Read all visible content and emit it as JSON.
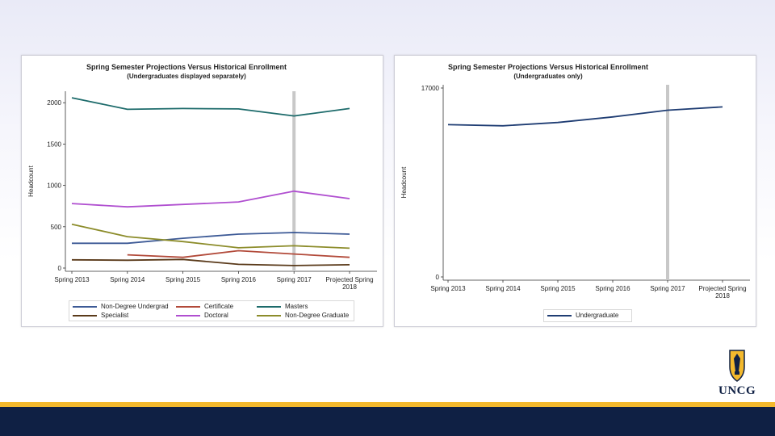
{
  "colors": {
    "accent_navy": "#0f2044",
    "accent_gold": "#f3b92d",
    "non_degree_undergrad": "#3d5a96",
    "certificate": "#b24a3a",
    "masters": "#1d6b6b",
    "specialist": "#5a3a1a",
    "doctoral": "#b04fd0",
    "non_degree_graduate": "#8c8c2a",
    "undergraduate": "#1f3d73"
  },
  "logo": {
    "text": "UNCG",
    "icon": "spartan-shield-icon"
  },
  "chart_data": [
    {
      "type": "line",
      "title": "Spring Semester Projections Versus Historical Enrollment",
      "subtitle": "(Undergraduates displayed separately)",
      "xlabel": "",
      "ylabel": "Headcount",
      "ylim": [
        0,
        2100
      ],
      "yticks": [
        0,
        500,
        1000,
        1500,
        2000
      ],
      "ytick_labels": [
        "0",
        "500",
        "1000",
        "1500",
        "2000"
      ],
      "categories": [
        "Spring 2013",
        "Spring 2014",
        "Spring 2015",
        "Spring 2016",
        "Spring 2017",
        "Projected Spring 2018"
      ],
      "reference_line_category": "Spring 2017",
      "series": [
        {
          "name": "Non-Degree Undergrad",
          "color": "#3d5a96",
          "values": [
            300,
            300,
            360,
            410,
            430,
            410
          ]
        },
        {
          "name": "Certificate",
          "color": "#b24a3a",
          "values": [
            null,
            160,
            130,
            210,
            170,
            130
          ]
        },
        {
          "name": "Masters",
          "color": "#1d6b6b",
          "values": [
            2060,
            1920,
            1930,
            1925,
            1840,
            1930
          ]
        },
        {
          "name": "Specialist",
          "color": "#5a3a1a",
          "values": [
            100,
            95,
            105,
            45,
            30,
            40
          ]
        },
        {
          "name": "Doctoral",
          "color": "#b04fd0",
          "values": [
            780,
            740,
            770,
            800,
            930,
            840
          ]
        },
        {
          "name": "Non-Degree Graduate",
          "color": "#8c8c2a",
          "values": [
            530,
            380,
            320,
            245,
            270,
            240
          ]
        }
      ]
    },
    {
      "type": "line",
      "title": "Spring Semester Projections Versus Historical Enrollment",
      "subtitle": "(Undergraduates only)",
      "xlabel": "",
      "ylabel": "Headcount",
      "ylim": [
        0,
        17000
      ],
      "yticks": [
        0,
        17000
      ],
      "ytick_labels": [
        "0",
        "17000"
      ],
      "categories": [
        "Spring 2013",
        "Spring 2014",
        "Spring 2015",
        "Spring 2016",
        "Spring 2017",
        "Projected Spring 2018"
      ],
      "reference_line_category": "Spring 2017",
      "series": [
        {
          "name": "Undergraduate",
          "color": "#1f3d73",
          "values": [
            13700,
            13600,
            13900,
            14400,
            15000,
            15300
          ]
        }
      ]
    }
  ]
}
